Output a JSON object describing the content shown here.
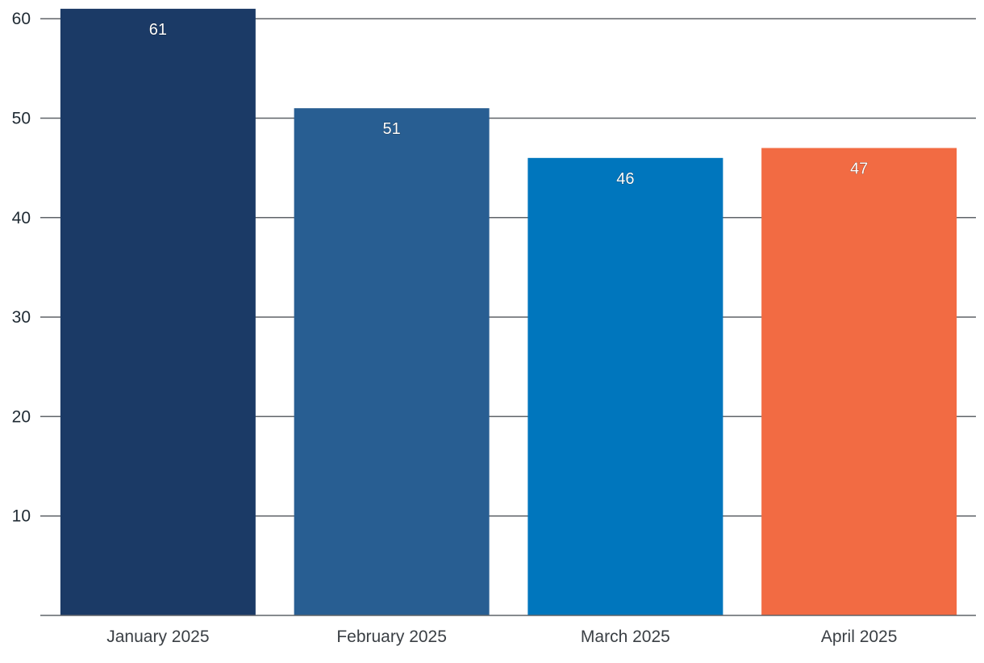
{
  "chart_data": {
    "type": "bar",
    "categories": [
      "January 2025",
      "February 2025",
      "March 2025",
      "April 2025"
    ],
    "values": [
      61,
      51,
      46,
      47
    ],
    "colors": [
      "#1b3a66",
      "#285e92",
      "#0076bd",
      "#f26b43"
    ],
    "title": "",
    "xlabel": "",
    "ylabel": "",
    "ylim": [
      0,
      61
    ],
    "yticks": [
      10,
      20,
      30,
      40,
      50,
      60
    ],
    "grid": true,
    "gridline_color": "#5f6368",
    "data_labels": [
      "61",
      "51",
      "46",
      "47"
    ]
  }
}
